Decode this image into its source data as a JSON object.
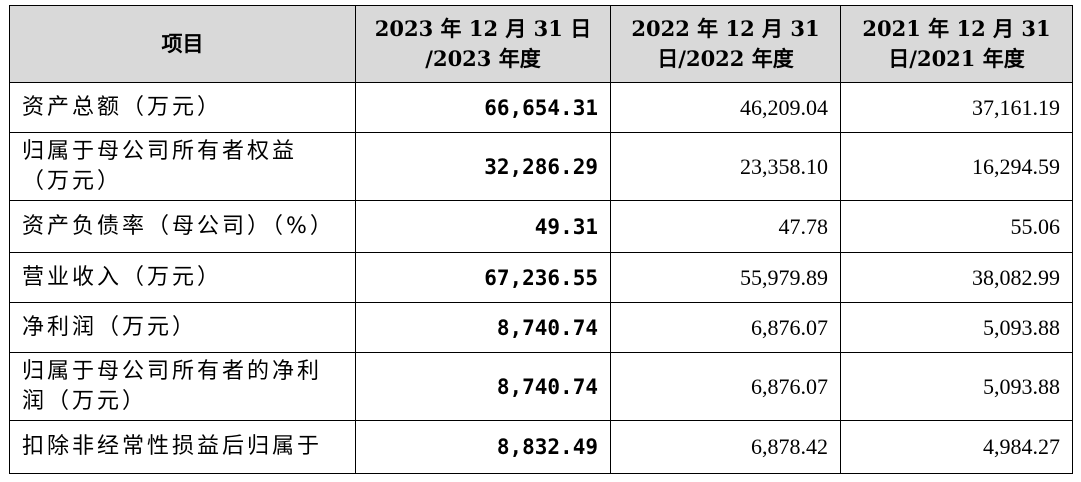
{
  "table": {
    "header": [
      [
        "项目"
      ],
      [
        "2023 年 12 月 31 日",
        "/2023 年度"
      ],
      [
        "2022 年 12 月 31",
        "日/2022 年度"
      ],
      [
        "2021 年 12 月 31",
        "日/2021 年度"
      ]
    ],
    "rows": [
      [
        [
          "资产总额（万元）"
        ],
        "66,654.31",
        "46,209.04",
        "37,161.19"
      ],
      [
        [
          "归属于母公司所有者权益",
          "（万元）"
        ],
        "32,286.29",
        "23,358.10",
        "16,294.59"
      ],
      [
        [
          "资产负债率（母公司）（%）"
        ],
        "49.31",
        "47.78",
        "55.06"
      ],
      [
        [
          "营业收入（万元）"
        ],
        "67,236.55",
        "55,979.89",
        "38,082.99"
      ],
      [
        [
          "净利润（万元）"
        ],
        "8,740.74",
        "6,876.07",
        "5,093.88"
      ],
      [
        [
          "归属于母公司所有者的净利",
          "润（万元）"
        ],
        "8,740.74",
        "6,876.07",
        "5,093.88"
      ],
      [
        [
          "扣除非经常性损益后归属于"
        ],
        "8,832.49",
        "6,878.42",
        "4,984.27"
      ]
    ]
  }
}
